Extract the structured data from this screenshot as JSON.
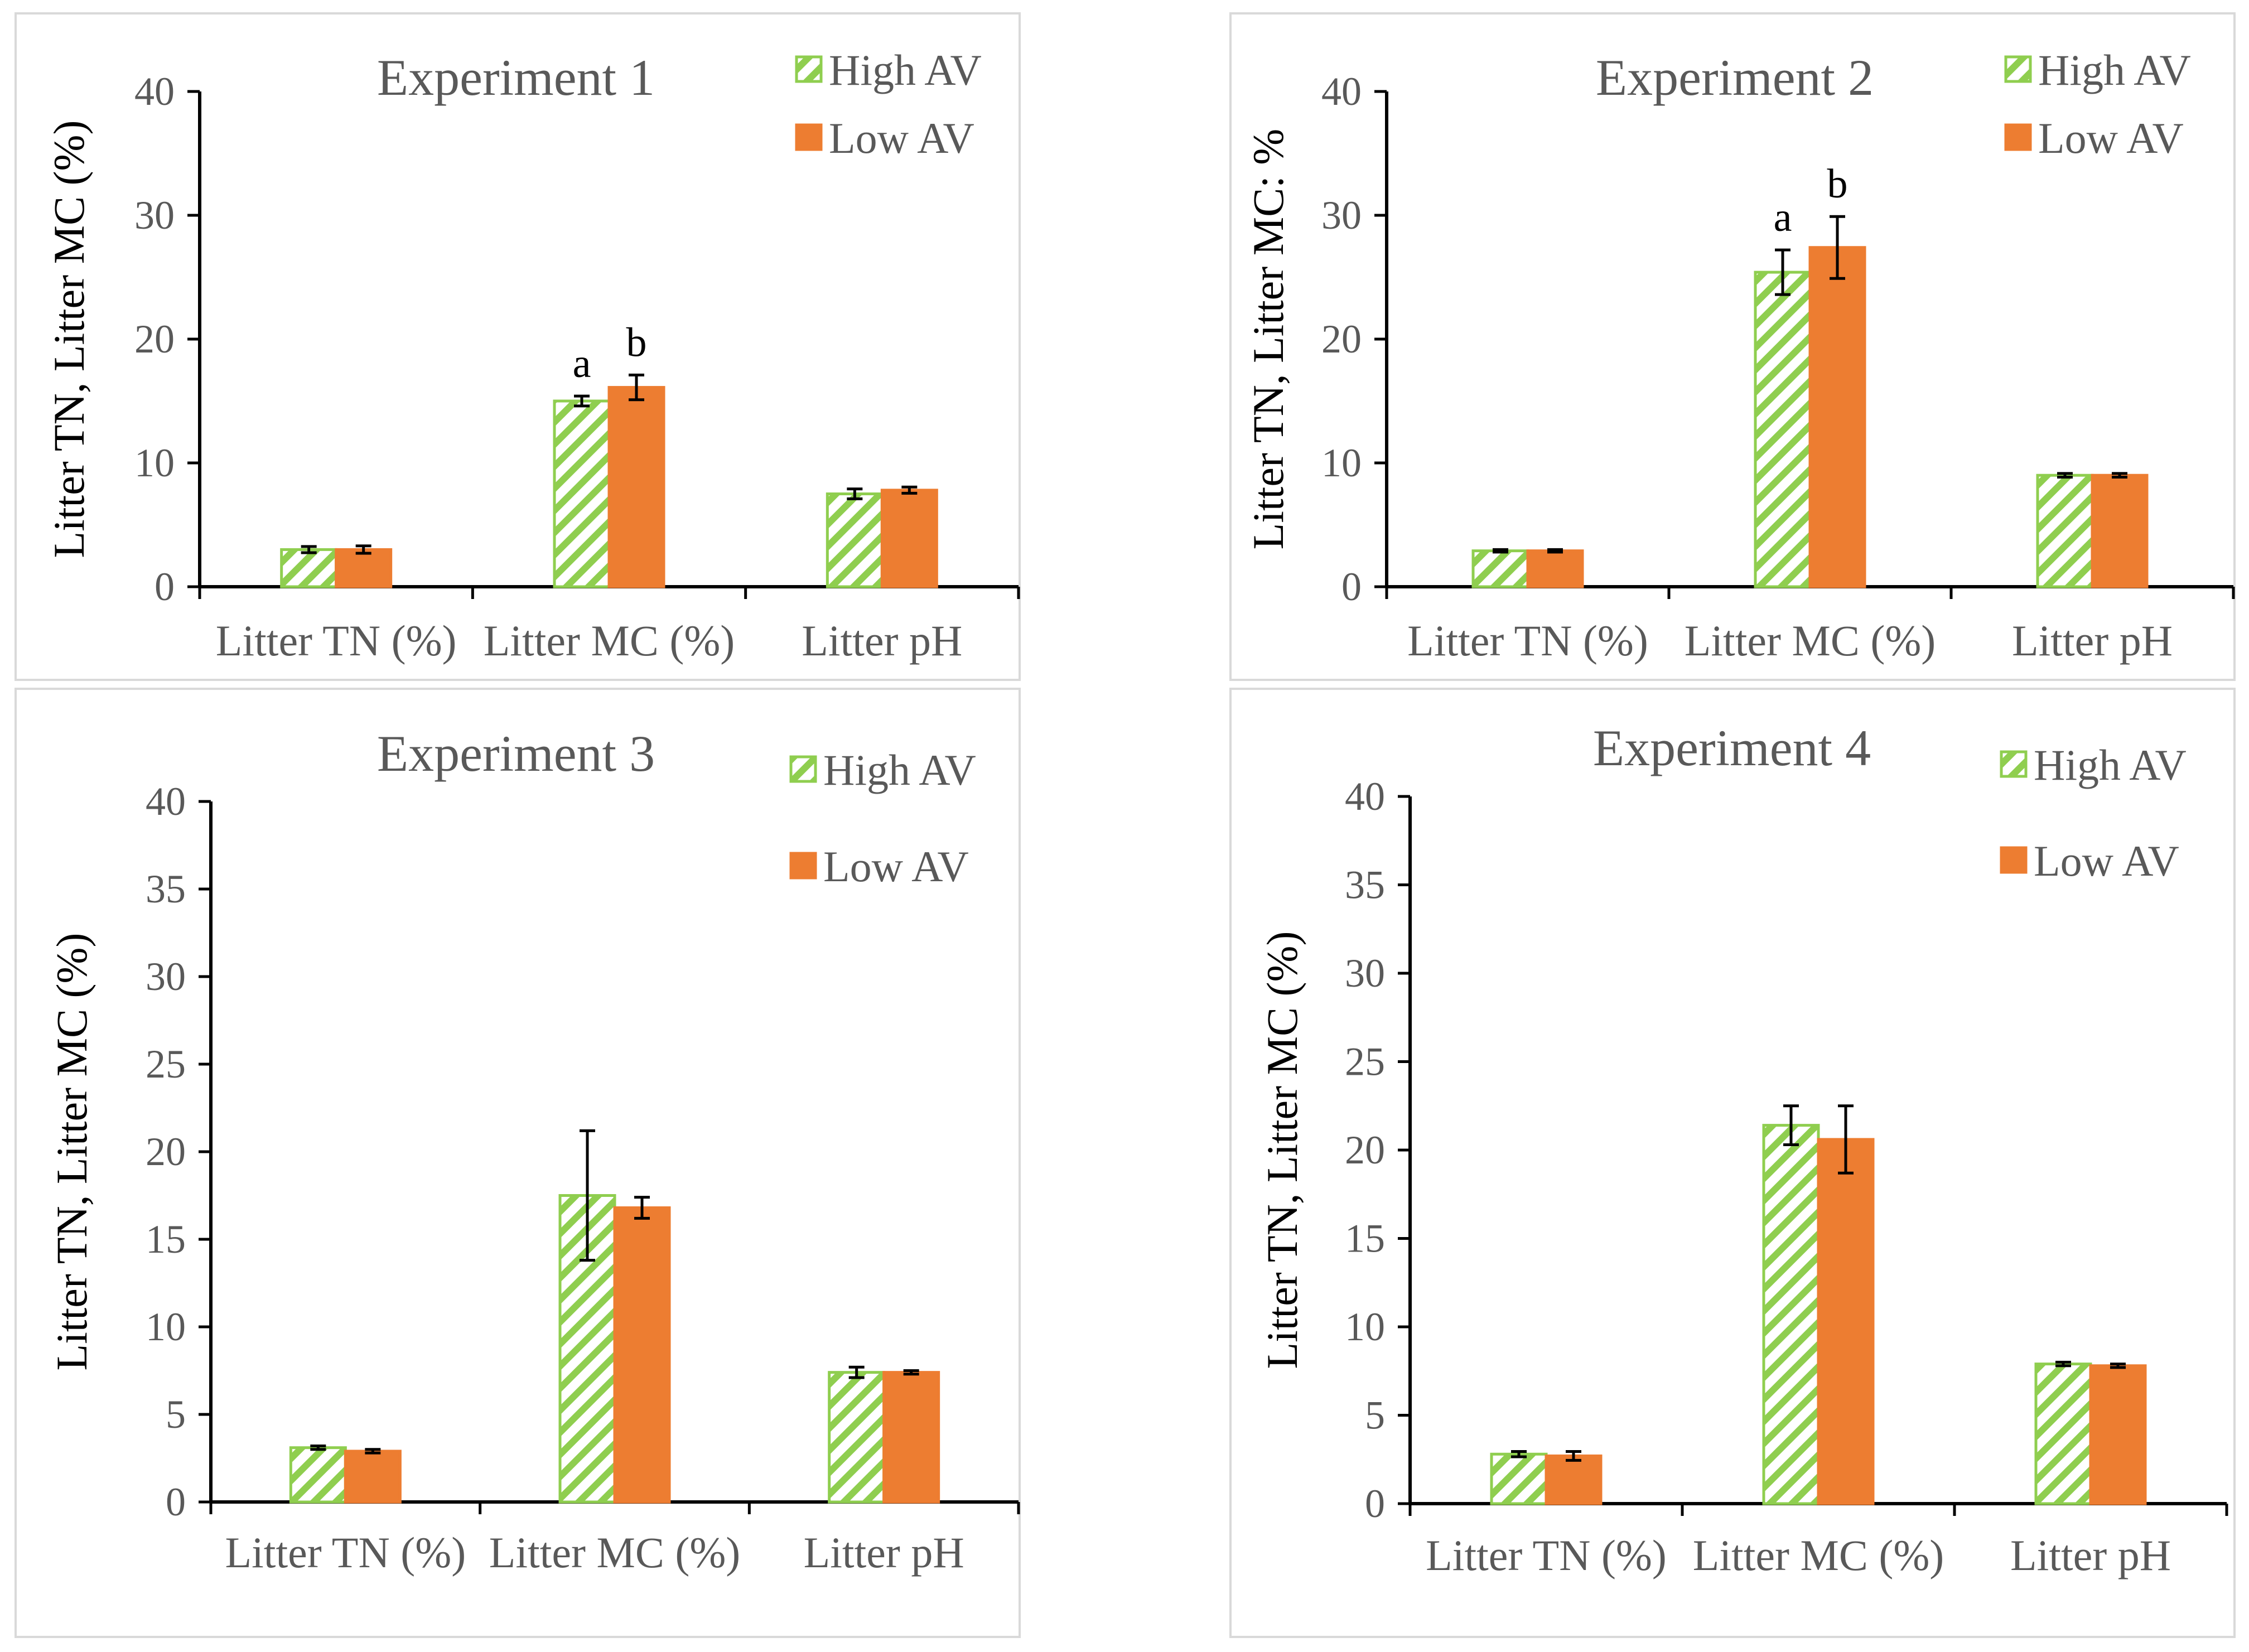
{
  "colors": {
    "high_av": "#8fce4f",
    "low_av": "#ed7d31",
    "axis": "#000000",
    "title": "#595959",
    "text": "#595959",
    "frame": "#d9d9d9"
  },
  "chart_data": [
    {
      "type": "bar",
      "title": "Experiment 1",
      "ylabel": "Litter TN, Litter MC (%)",
      "xlabel": "",
      "categories": [
        "Litter TN (%)",
        "Litter MC (%)",
        "Litter pH"
      ],
      "ylim": [
        0,
        40
      ],
      "yticks": [
        "0",
        "10",
        "20",
        "30",
        "40"
      ],
      "legend_position": "top-right",
      "series": [
        {
          "name": "High AV",
          "pattern": "hatched",
          "values": [
            3.0,
            15.0,
            7.5
          ],
          "errors": [
            0.25,
            0.4,
            0.4
          ],
          "labels": [
            "",
            "a",
            ""
          ]
        },
        {
          "name": "Low AV",
          "pattern": "solid",
          "values": [
            3.0,
            16.1,
            7.8
          ],
          "errors": [
            0.3,
            1.0,
            0.25
          ],
          "labels": [
            "",
            "b",
            ""
          ]
        }
      ]
    },
    {
      "type": "bar",
      "title": "Experiment 2",
      "ylabel": "Litter TN, Litter MC: %",
      "xlabel": "",
      "categories": [
        "Litter TN (%)",
        "Litter MC (%)",
        "Litter pH"
      ],
      "ylim": [
        0,
        40
      ],
      "yticks": [
        "0",
        "10",
        "20",
        "30",
        "40"
      ],
      "legend_position": "top-right",
      "series": [
        {
          "name": "High AV",
          "pattern": "hatched",
          "values": [
            2.9,
            25.4,
            9.0
          ],
          "errors": [
            0.1,
            1.8,
            0.15
          ],
          "labels": [
            "",
            "a",
            ""
          ]
        },
        {
          "name": "Low AV",
          "pattern": "solid",
          "values": [
            2.9,
            27.4,
            9.0
          ],
          "errors": [
            0.1,
            2.5,
            0.15
          ],
          "labels": [
            "",
            "b",
            ""
          ]
        }
      ]
    },
    {
      "type": "bar",
      "title": "Experiment 3",
      "ylabel": "Litter TN, Litter MC (%)",
      "xlabel": "",
      "categories": [
        "Litter TN (%)",
        "Litter MC (%)",
        "Litter pH"
      ],
      "ylim": [
        0,
        40
      ],
      "yticks": [
        "0",
        "5",
        "10",
        "15",
        "20",
        "25",
        "30",
        "35",
        "40"
      ],
      "legend_position": "top-right",
      "series": [
        {
          "name": "High AV",
          "pattern": "hatched",
          "values": [
            3.1,
            17.5,
            7.4
          ],
          "errors": [
            0.1,
            3.7,
            0.3
          ],
          "labels": [
            "",
            "",
            ""
          ]
        },
        {
          "name": "Low AV",
          "pattern": "solid",
          "values": [
            2.9,
            16.8,
            7.4
          ],
          "errors": [
            0.1,
            0.6,
            0.1
          ],
          "labels": [
            "",
            "",
            ""
          ]
        }
      ]
    },
    {
      "type": "bar",
      "title": "Experiment 4",
      "ylabel": "Litter TN, Litter MC (%)",
      "xlabel": "",
      "categories": [
        "Litter TN (%)",
        "Litter MC (%)",
        "Litter pH"
      ],
      "ylim": [
        0,
        40
      ],
      "yticks": [
        "0",
        "5",
        "10",
        "15",
        "20",
        "25",
        "30",
        "35",
        "40"
      ],
      "legend_position": "top-right",
      "series": [
        {
          "name": "High AV",
          "pattern": "hatched",
          "values": [
            2.8,
            21.4,
            7.9
          ],
          "errors": [
            0.15,
            1.1,
            0.1
          ],
          "labels": [
            "",
            "",
            ""
          ]
        },
        {
          "name": "Low AV",
          "pattern": "solid",
          "values": [
            2.7,
            20.6,
            7.8
          ],
          "errors": [
            0.25,
            1.9,
            0.1
          ],
          "labels": [
            "",
            "",
            ""
          ]
        }
      ]
    }
  ]
}
